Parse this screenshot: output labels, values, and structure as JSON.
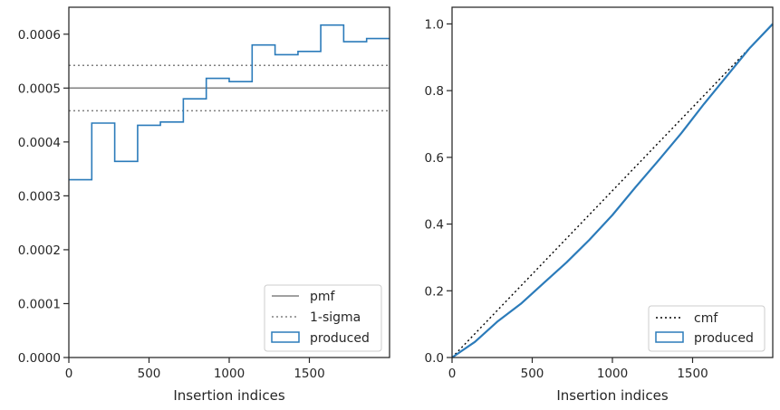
{
  "chart_data": [
    {
      "type": "step",
      "xlabel": "Insertion indices",
      "ylabel": "",
      "xlim": [
        0,
        2000
      ],
      "ylim": [
        0,
        0.00065
      ],
      "xticks": [
        0,
        500,
        1000,
        1500
      ],
      "xtick_labels": [
        "0",
        "500",
        "1000",
        "1500"
      ],
      "yticks": [
        0,
        0.0001,
        0.0002,
        0.0003,
        0.0004,
        0.0005,
        0.0006
      ],
      "ytick_labels": [
        "0.0000",
        "0.0001",
        "0.0002",
        "0.0003",
        "0.0004",
        "0.0005",
        "0.0006"
      ],
      "grid": false,
      "legend_position": "lower right",
      "legend": [
        {
          "label": "pmf",
          "style": "solid",
          "color": "#808080"
        },
        {
          "label": "1-sigma",
          "style": "dotted",
          "color": "#808080"
        },
        {
          "label": "produced",
          "style": "patch",
          "color": "#2b7bba"
        }
      ],
      "pmf": 0.0005,
      "sigma_band": [
        0.000458,
        0.000542
      ],
      "produced": {
        "bin_edges": [
          0,
          143,
          286,
          429,
          571,
          714,
          857,
          1000,
          1143,
          1286,
          1429,
          1571,
          1714,
          1857,
          2000
        ],
        "values": [
          0.00033,
          0.000435,
          0.000364,
          0.000431,
          0.000437,
          0.00048,
          0.000518,
          0.000512,
          0.00058,
          0.000562,
          0.000568,
          0.000617,
          0.000586,
          0.000592
        ]
      }
    },
    {
      "type": "line",
      "xlabel": "Insertion indices",
      "ylabel": "",
      "xlim": [
        0,
        2000
      ],
      "ylim": [
        0,
        1.05
      ],
      "xticks": [
        0,
        500,
        1000,
        1500
      ],
      "xtick_labels": [
        "0",
        "500",
        "1000",
        "1500"
      ],
      "yticks": [
        0,
        0.2,
        0.4,
        0.6,
        0.8,
        1.0
      ],
      "ytick_labels": [
        "0.0",
        "0.2",
        "0.4",
        "0.6",
        "0.8",
        "1.0"
      ],
      "grid": false,
      "legend_position": "lower right",
      "legend": [
        {
          "label": "cmf",
          "style": "dotted",
          "color": "#000000"
        },
        {
          "label": "produced",
          "style": "patch",
          "color": "#2b7bba"
        }
      ],
      "cmf": {
        "x": [
          0,
          2000
        ],
        "y": [
          0,
          1.0
        ]
      },
      "produced": {
        "x": [
          0,
          143,
          286,
          429,
          571,
          714,
          857,
          1000,
          1143,
          1286,
          1429,
          1571,
          1714,
          1857,
          2000
        ],
        "y": [
          0,
          0.047,
          0.109,
          0.161,
          0.223,
          0.285,
          0.353,
          0.427,
          0.51,
          0.59,
          0.672,
          0.76,
          0.844,
          0.928,
          1.0
        ]
      }
    }
  ]
}
